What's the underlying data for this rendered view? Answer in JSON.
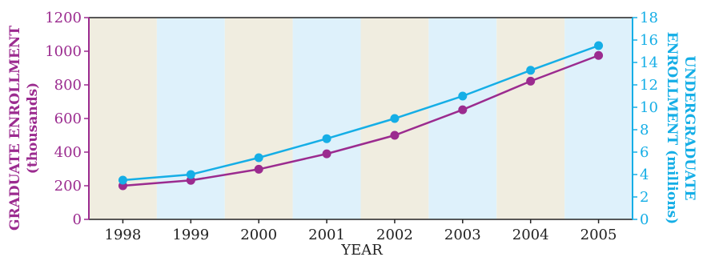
{
  "chart_data": {
    "type": "line",
    "categories": [
      "1998",
      "1999",
      "2000",
      "2001",
      "2002",
      "2003",
      "2004",
      "2005"
    ],
    "xlabel": "YEAR",
    "ylabel_left_line1": "GRADUATE ENROLLMENT",
    "ylabel_left_line2": "(thousands)",
    "ylabel_right_line1": "UNDERGRADUATE",
    "ylabel_right_line2": "ENROLLMENT (millions)",
    "ylim_left": [
      0,
      1200
    ],
    "yticks_left": [
      "0",
      "200",
      "400",
      "600",
      "800",
      "1000",
      "1200"
    ],
    "ylim_right": [
      0,
      18
    ],
    "yticks_right": [
      "0",
      "2",
      "4",
      "6",
      "8",
      "10",
      "12",
      "14",
      "16",
      "18"
    ],
    "band_colors": [
      "#f0ede0",
      "#def1fb"
    ],
    "series": [
      {
        "axis": "left",
        "color": "#9b2b8f",
        "values": [
          200,
          232,
          298,
          390,
          500,
          652,
          822,
          975
        ]
      },
      {
        "axis": "right",
        "color": "#15aee6",
        "values": [
          3.5,
          4.0,
          5.5,
          7.2,
          9.0,
          11.0,
          13.3,
          15.5
        ]
      }
    ],
    "grid": false,
    "legend": "none"
  }
}
